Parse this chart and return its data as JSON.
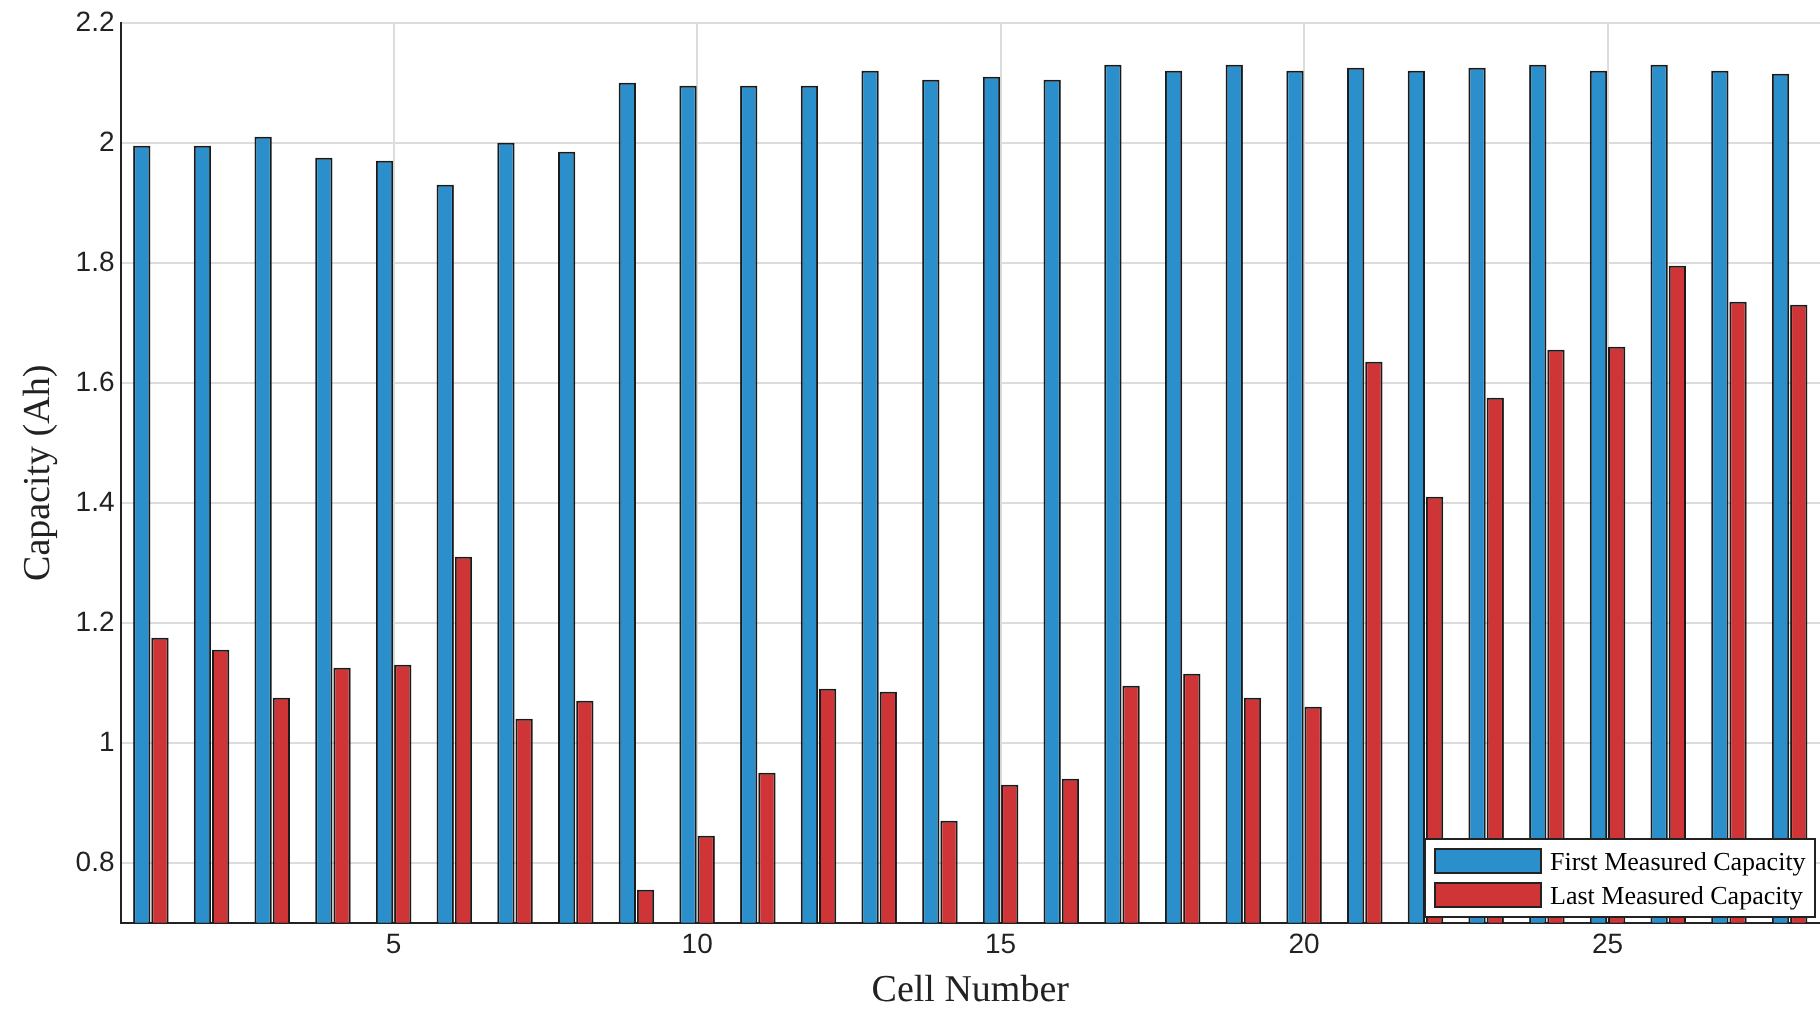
{
  "chart_data": {
    "type": "bar",
    "xlabel": "Cell Number",
    "ylabel": "Capacity (Ah)",
    "categories": [
      null,
      null,
      null,
      null,
      "5",
      null,
      null,
      null,
      null,
      "10",
      null,
      null,
      null,
      null,
      "15",
      null,
      null,
      null,
      null,
      "20",
      null,
      null,
      null,
      null,
      "25",
      null,
      null,
      null
    ],
    "series": [
      {
        "name": "First Measured Capacity",
        "color": "#2a8fcb",
        "values": [
          1.995,
          1.995,
          2.01,
          1.975,
          1.97,
          1.93,
          2.0,
          1.985,
          2.1,
          2.095,
          2.095,
          2.095,
          2.12,
          2.105,
          2.11,
          2.105,
          2.13,
          2.12,
          2.13,
          2.12,
          2.125,
          2.12,
          2.125,
          2.13,
          2.12,
          2.13,
          2.12,
          2.115
        ]
      },
      {
        "name": "Last Measured Capacity",
        "color": "#cf3537",
        "values": [
          1.175,
          1.155,
          1.075,
          1.125,
          1.13,
          1.31,
          1.04,
          1.07,
          0.755,
          0.845,
          0.95,
          1.09,
          1.085,
          0.87,
          0.93,
          0.94,
          1.095,
          1.115,
          1.075,
          1.06,
          1.635,
          1.41,
          1.575,
          1.655,
          1.66,
          1.795,
          1.735,
          1.73
        ]
      }
    ],
    "ylim": [
      0.7,
      2.2
    ],
    "yticks": [
      0.8,
      1,
      1.2,
      1.4,
      1.6,
      1.8,
      2,
      2.2
    ],
    "grid": true,
    "legend": "bottom right"
  }
}
